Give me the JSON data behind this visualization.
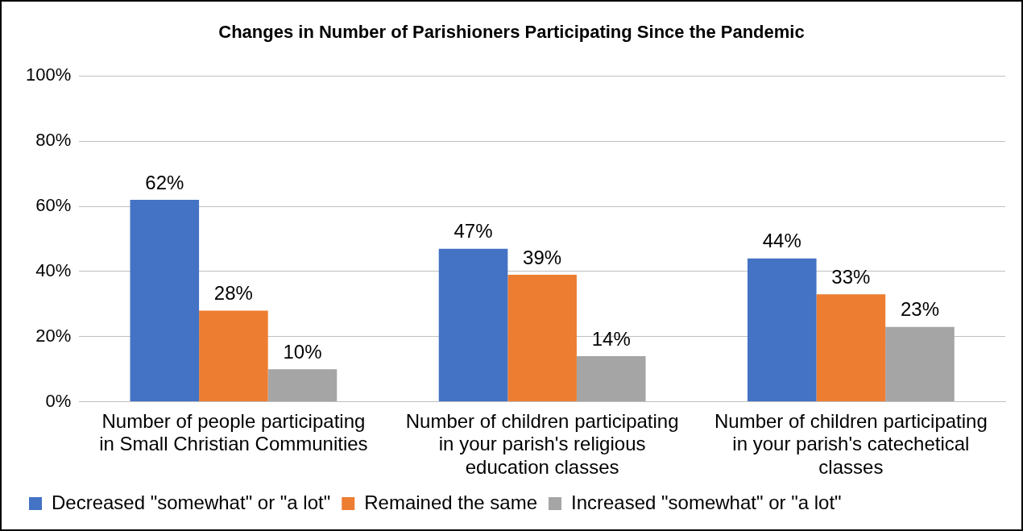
{
  "chart_data": {
    "type": "bar",
    "title": "Changes in Number of Parishioners Participating Since the Pandemic",
    "categories": [
      "Number of people participating in Small Christian Communities",
      "Number of children participating in your parish's religious education classes",
      "Number of children participating in your parish's catechetical classes"
    ],
    "series": [
      {
        "name": "Decreased \"somewhat\" or \"a lot\"",
        "color": "#4472c4",
        "values": [
          62,
          47,
          44
        ],
        "value_labels": [
          "62%",
          "47%",
          "44%"
        ]
      },
      {
        "name": "Remained the same",
        "color": "#ed7d31",
        "values": [
          28,
          39,
          33
        ],
        "value_labels": [
          "28%",
          "39%",
          "33%"
        ]
      },
      {
        "name": "Increased \"somewhat\" or \"a lot\"",
        "color": "#a5a5a5",
        "values": [
          10,
          14,
          23
        ],
        "value_labels": [
          "10%",
          "14%",
          "23%"
        ]
      }
    ],
    "ylim": [
      0,
      100
    ],
    "yticks": [
      {
        "value": 0,
        "label": "0%"
      },
      {
        "value": 20,
        "label": "20%"
      },
      {
        "value": 40,
        "label": "40%"
      },
      {
        "value": 60,
        "label": "60%"
      },
      {
        "value": 80,
        "label": "80%"
      },
      {
        "value": 100,
        "label": "100%"
      }
    ],
    "grid": "y",
    "legend": "bottom"
  }
}
